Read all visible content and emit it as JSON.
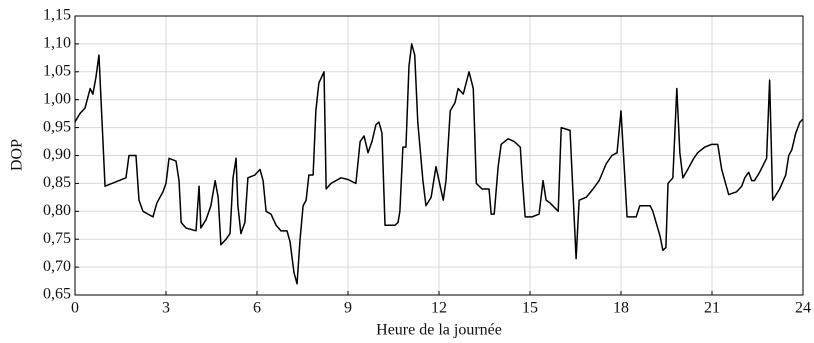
{
  "chart_data": {
    "type": "line",
    "xlabel": "Heure de la journée",
    "ylabel": "DOP",
    "color": "#000000",
    "grid": true,
    "xlim": [
      0,
      24
    ],
    "xticks": [
      0,
      3,
      6,
      9,
      12,
      15,
      18,
      21,
      24
    ],
    "ylim": [
      0.65,
      1.15
    ],
    "yticks": [
      {
        "value": 0.65,
        "label": "0,65"
      },
      {
        "value": 0.7,
        "label": "0,70"
      },
      {
        "value": 0.75,
        "label": "0,75"
      },
      {
        "value": 0.8,
        "label": "0,80"
      },
      {
        "value": 0.85,
        "label": "0,85"
      },
      {
        "value": 0.9,
        "label": "0,90"
      },
      {
        "value": 0.95,
        "label": "0,95"
      },
      {
        "value": 1.0,
        "label": "1,00"
      },
      {
        "value": 1.05,
        "label": "1,05"
      },
      {
        "value": 1.1,
        "label": "1,10"
      },
      {
        "value": 1.15,
        "label": "1,15"
      }
    ],
    "x": [
      0,
      0.16,
      0.33,
      0.5,
      0.59,
      0.69,
      0.79,
      0.99,
      1.68,
      1.78,
      2.01,
      2.11,
      2.24,
      2.57,
      2.7,
      2.9,
      3.0,
      3.1,
      3.33,
      3.43,
      3.5,
      3.66,
      3.99,
      4.09,
      4.15,
      4.32,
      4.48,
      4.62,
      4.72,
      4.81,
      4.98,
      5.11,
      5.21,
      5.31,
      5.37,
      5.47,
      5.6,
      5.7,
      5.93,
      6.1,
      6.2,
      6.3,
      6.46,
      6.63,
      6.79,
      6.99,
      7.09,
      7.22,
      7.32,
      7.42,
      7.52,
      7.62,
      7.71,
      7.85,
      7.94,
      8.04,
      8.21,
      8.28,
      8.44,
      8.77,
      9.0,
      9.26,
      9.4,
      9.53,
      9.66,
      9.79,
      9.92,
      10.02,
      10.12,
      10.22,
      10.55,
      10.65,
      10.71,
      10.81,
      10.91,
      11.01,
      11.1,
      11.2,
      11.3,
      11.47,
      11.57,
      11.74,
      11.9,
      12.14,
      12.23,
      12.37,
      12.53,
      12.63,
      12.8,
      12.99,
      13.13,
      13.23,
      13.42,
      13.65,
      13.72,
      13.82,
      13.95,
      14.05,
      14.28,
      14.48,
      14.68,
      14.75,
      14.84,
      15.07,
      15.3,
      15.43,
      15.53,
      15.66,
      15.93,
      16.03,
      16.32,
      16.52,
      16.62,
      16.85,
      17.08,
      17.28,
      17.51,
      17.7,
      17.87,
      18.0,
      18.2,
      18.36,
      18.5,
      18.62,
      18.96,
      19.05,
      19.29,
      19.38,
      19.48,
      19.55,
      19.71,
      19.84,
      19.94,
      20.04,
      20.2,
      20.4,
      20.53,
      20.76,
      20.99,
      21.19,
      21.32,
      21.55,
      21.81,
      21.98,
      22.08,
      22.21,
      22.31,
      22.4,
      22.57,
      22.8,
      22.9,
      23.0,
      23.23,
      23.43,
      23.53,
      23.63,
      23.76,
      23.9,
      24
    ],
    "values": [
      0.96,
      0.975,
      0.985,
      1.02,
      1.01,
      1.04,
      1.08,
      0.845,
      0.86,
      0.9,
      0.9,
      0.82,
      0.8,
      0.79,
      0.815,
      0.835,
      0.85,
      0.895,
      0.89,
      0.855,
      0.78,
      0.77,
      0.765,
      0.845,
      0.77,
      0.785,
      0.81,
      0.855,
      0.825,
      0.74,
      0.75,
      0.76,
      0.86,
      0.895,
      0.81,
      0.76,
      0.78,
      0.86,
      0.865,
      0.875,
      0.855,
      0.8,
      0.795,
      0.775,
      0.765,
      0.765,
      0.745,
      0.69,
      0.67,
      0.75,
      0.81,
      0.82,
      0.865,
      0.865,
      0.98,
      1.03,
      1.05,
      0.84,
      0.85,
      0.86,
      0.857,
      0.85,
      0.925,
      0.935,
      0.905,
      0.925,
      0.955,
      0.96,
      0.94,
      0.775,
      0.775,
      0.78,
      0.8,
      0.915,
      0.915,
      1.06,
      1.1,
      1.08,
      0.96,
      0.855,
      0.81,
      0.825,
      0.88,
      0.82,
      0.855,
      0.98,
      0.995,
      1.02,
      1.01,
      1.05,
      1.02,
      0.85,
      0.84,
      0.84,
      0.795,
      0.795,
      0.88,
      0.92,
      0.93,
      0.925,
      0.915,
      0.855,
      0.79,
      0.79,
      0.795,
      0.855,
      0.82,
      0.815,
      0.8,
      0.95,
      0.945,
      0.715,
      0.82,
      0.825,
      0.84,
      0.855,
      0.885,
      0.9,
      0.905,
      0.98,
      0.79,
      0.79,
      0.79,
      0.81,
      0.81,
      0.8,
      0.755,
      0.73,
      0.735,
      0.85,
      0.86,
      1.02,
      0.905,
      0.86,
      0.875,
      0.895,
      0.905,
      0.915,
      0.92,
      0.92,
      0.875,
      0.83,
      0.835,
      0.845,
      0.86,
      0.87,
      0.855,
      0.855,
      0.87,
      0.895,
      1.035,
      0.82,
      0.84,
      0.865,
      0.9,
      0.91,
      0.94,
      0.96,
      0.965
    ]
  }
}
